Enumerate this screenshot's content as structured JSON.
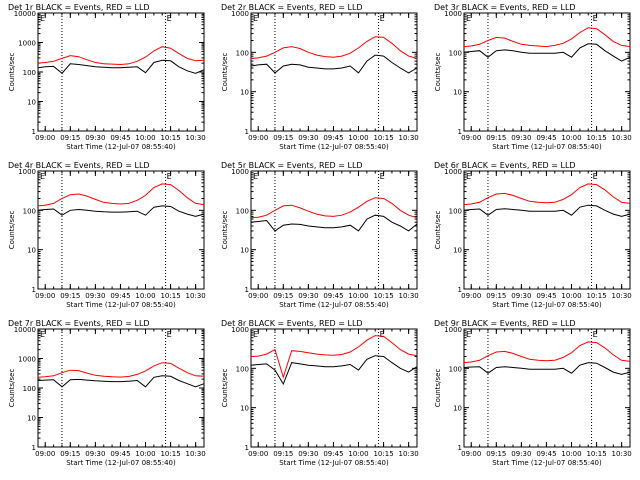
{
  "figure": {
    "xlabel": "Start Time (12-Jul-07 08:55:40)",
    "ylabel": "Counts/sec",
    "marker": "E"
  },
  "colors": {
    "events": "#000000",
    "lld": "#ff0000",
    "axes": "#000000"
  },
  "chart_data": [
    {
      "type": "line",
      "title": "Det 1r BLACK = Events, RED = LLD",
      "yscale": "log",
      "ylim": [
        1,
        10000
      ],
      "yticks": [
        "1",
        "10",
        "100",
        "1000",
        "10000"
      ],
      "xlim": [
        "08:55:40",
        "10:35"
      ],
      "xticks": [
        "09:00",
        "09:15",
        "09:30",
        "09:45",
        "10:00",
        "10:15",
        "10:30"
      ],
      "x": [
        "08:55:40",
        "09:00",
        "09:05",
        "09:10",
        "09:15",
        "09:20",
        "09:25",
        "09:30",
        "09:35",
        "09:40",
        "09:45",
        "09:50",
        "09:55",
        "10:00",
        "10:05",
        "10:10",
        "10:15",
        "10:20",
        "10:25",
        "10:30",
        "10:35"
      ],
      "series": [
        {
          "values": [
            200,
            210,
            230,
            290,
            360,
            330,
            260,
            210,
            190,
            185,
            180,
            190,
            230,
            320,
            520,
            720,
            640,
            420,
            290,
            240,
            250
          ]
        },
        {
          "values": [
            140,
            150,
            155,
            90,
            190,
            180,
            165,
            150,
            145,
            140,
            140,
            145,
            150,
            95,
            210,
            250,
            240,
            150,
            110,
            90,
            120
          ]
        }
      ]
    },
    {
      "type": "line",
      "title": "Det 2r BLACK = Events, RED = LLD",
      "yscale": "log",
      "ylim": [
        1,
        1000
      ],
      "yticks": [
        "1",
        "10",
        "100",
        "1000"
      ],
      "xlim": [
        "08:55:40",
        "10:35"
      ],
      "xticks": [
        "09:00",
        "09:15",
        "09:30",
        "09:45",
        "10:00",
        "10:15",
        "10:30"
      ],
      "x": [
        "08:55:40",
        "09:00",
        "09:05",
        "09:10",
        "09:15",
        "09:20",
        "09:25",
        "09:30",
        "09:35",
        "09:40",
        "09:45",
        "09:50",
        "09:55",
        "10:00",
        "10:05",
        "10:10",
        "10:15",
        "10:20",
        "10:25",
        "10:30",
        "10:35"
      ],
      "series": [
        {
          "values": [
            70,
            72,
            80,
            100,
            130,
            140,
            125,
            100,
            85,
            78,
            75,
            80,
            95,
            130,
            190,
            250,
            240,
            170,
            110,
            80,
            70
          ]
        },
        {
          "values": [
            45,
            48,
            50,
            30,
            45,
            50,
            48,
            42,
            40,
            38,
            38,
            40,
            45,
            30,
            60,
            85,
            80,
            55,
            40,
            30,
            40
          ]
        }
      ]
    },
    {
      "type": "line",
      "title": "Det 3r BLACK = Events, RED = LLD",
      "yscale": "log",
      "ylim": [
        1,
        1000
      ],
      "yticks": [
        "1",
        "10",
        "100",
        "1000"
      ],
      "xlim": [
        "08:55:40",
        "10:35"
      ],
      "xticks": [
        "09:00",
        "09:15",
        "09:30",
        "09:45",
        "10:00",
        "10:15",
        "10:30"
      ],
      "x": [
        "08:55:40",
        "09:00",
        "09:05",
        "09:10",
        "09:15",
        "09:20",
        "09:25",
        "09:30",
        "09:35",
        "09:40",
        "09:45",
        "09:50",
        "09:55",
        "10:00",
        "10:05",
        "10:10",
        "10:15",
        "10:20",
        "10:25",
        "10:30",
        "10:35"
      ],
      "series": [
        {
          "values": [
            140,
            145,
            160,
            200,
            240,
            230,
            190,
            160,
            150,
            145,
            140,
            150,
            170,
            220,
            320,
            420,
            400,
            280,
            190,
            150,
            140
          ]
        },
        {
          "values": [
            100,
            105,
            110,
            75,
            110,
            115,
            110,
            100,
            95,
            95,
            95,
            95,
            100,
            75,
            130,
            165,
            160,
            110,
            80,
            60,
            75
          ]
        }
      ]
    },
    {
      "type": "line",
      "title": "Det 4r BLACK = Events, RED = LLD",
      "yscale": "log",
      "ylim": [
        1,
        1000
      ],
      "yticks": [
        "1",
        "10",
        "100",
        "1000"
      ],
      "xlim": [
        "08:55:40",
        "10:35"
      ],
      "xticks": [
        "09:00",
        "09:15",
        "09:30",
        "09:45",
        "10:00",
        "10:15",
        "10:30"
      ],
      "x": [
        "08:55:40",
        "09:00",
        "09:05",
        "09:10",
        "09:15",
        "09:20",
        "09:25",
        "09:30",
        "09:35",
        "09:40",
        "09:45",
        "09:50",
        "09:55",
        "10:00",
        "10:05",
        "10:10",
        "10:15",
        "10:20",
        "10:25",
        "10:30",
        "10:35"
      ],
      "series": [
        {
          "values": [
            130,
            135,
            150,
            200,
            250,
            260,
            230,
            190,
            160,
            150,
            145,
            150,
            180,
            240,
            380,
            470,
            450,
            320,
            210,
            150,
            140
          ]
        },
        {
          "values": [
            100,
            105,
            108,
            75,
            100,
            105,
            100,
            95,
            92,
            90,
            90,
            92,
            95,
            75,
            120,
            130,
            125,
            95,
            80,
            70,
            80
          ]
        }
      ]
    },
    {
      "type": "line",
      "title": "Det 5r BLACK = Events, RED = LLD",
      "yscale": "log",
      "ylim": [
        1,
        1000
      ],
      "yticks": [
        "1",
        "10",
        "100",
        "1000"
      ],
      "xlim": [
        "08:55:40",
        "10:35"
      ],
      "xticks": [
        "09:00",
        "09:15",
        "09:30",
        "09:45",
        "10:00",
        "10:15",
        "10:30"
      ],
      "x": [
        "08:55:40",
        "09:00",
        "09:05",
        "09:10",
        "09:15",
        "09:20",
        "09:25",
        "09:30",
        "09:35",
        "09:40",
        "09:45",
        "09:50",
        "09:55",
        "10:00",
        "10:05",
        "10:10",
        "10:15",
        "10:20",
        "10:25",
        "10:30",
        "10:35"
      ],
      "series": [
        {
          "values": [
            65,
            67,
            75,
            100,
            130,
            135,
            115,
            95,
            80,
            72,
            70,
            75,
            90,
            120,
            170,
            210,
            200,
            150,
            100,
            75,
            65
          ]
        },
        {
          "values": [
            50,
            52,
            55,
            30,
            42,
            45,
            44,
            40,
            38,
            36,
            36,
            38,
            42,
            30,
            60,
            75,
            70,
            50,
            40,
            30,
            45
          ]
        }
      ]
    },
    {
      "type": "line",
      "title": "Det 6r BLACK = Events, RED = LLD",
      "yscale": "log",
      "ylim": [
        1,
        1000
      ],
      "yticks": [
        "1",
        "10",
        "100",
        "1000"
      ],
      "xlim": [
        "08:55:40",
        "10:35"
      ],
      "xticks": [
        "09:00",
        "09:15",
        "09:30",
        "09:45",
        "10:00",
        "10:15",
        "10:30"
      ],
      "x": [
        "08:55:40",
        "09:00",
        "09:05",
        "09:10",
        "09:15",
        "09:20",
        "09:25",
        "09:30",
        "09:35",
        "09:40",
        "09:45",
        "09:50",
        "09:55",
        "10:00",
        "10:05",
        "10:10",
        "10:15",
        "10:20",
        "10:25",
        "10:30",
        "10:35"
      ],
      "series": [
        {
          "values": [
            140,
            145,
            160,
            210,
            260,
            270,
            240,
            200,
            170,
            160,
            155,
            160,
            190,
            250,
            380,
            470,
            450,
            330,
            220,
            160,
            150
          ]
        },
        {
          "values": [
            100,
            105,
            108,
            75,
            105,
            110,
            105,
            100,
            95,
            95,
            95,
            95,
            100,
            75,
            120,
            135,
            130,
            100,
            80,
            70,
            80
          ]
        }
      ]
    },
    {
      "type": "line",
      "title": "Det 7r BLACK = Events, RED = LLD",
      "yscale": "log",
      "ylim": [
        1,
        10000
      ],
      "yticks": [
        "1",
        "10",
        "100",
        "1000",
        "10000"
      ],
      "xlim": [
        "08:55:40",
        "10:35"
      ],
      "xticks": [
        "09:00",
        "09:15",
        "09:30",
        "09:45",
        "10:00",
        "10:15",
        "10:30"
      ],
      "x": [
        "08:55:40",
        "09:00",
        "09:05",
        "09:10",
        "09:15",
        "09:20",
        "09:25",
        "09:30",
        "09:35",
        "09:40",
        "09:45",
        "09:50",
        "09:55",
        "10:00",
        "10:05",
        "10:10",
        "10:15",
        "10:20",
        "10:25",
        "10:30",
        "10:35"
      ],
      "series": [
        {
          "values": [
            230,
            240,
            260,
            330,
            400,
            390,
            320,
            270,
            250,
            240,
            235,
            245,
            290,
            380,
            560,
            720,
            680,
            470,
            330,
            260,
            250
          ]
        },
        {
          "values": [
            180,
            185,
            190,
            110,
            190,
            195,
            185,
            175,
            170,
            165,
            165,
            170,
            180,
            110,
            230,
            260,
            250,
            180,
            140,
            110,
            140
          ]
        }
      ]
    },
    {
      "type": "line",
      "title": "Det 8r BLACK = Events, RED = LLD",
      "yscale": "log",
      "ylim": [
        1,
        1000
      ],
      "yticks": [
        "1",
        "10",
        "100",
        "1000"
      ],
      "xlim": [
        "08:55:40",
        "10:35"
      ],
      "xticks": [
        "09:00",
        "09:15",
        "09:30",
        "09:45",
        "10:00",
        "10:15",
        "10:30"
      ],
      "x": [
        "08:55:40",
        "09:00",
        "09:05",
        "09:10",
        "09:15",
        "09:20",
        "09:25",
        "09:30",
        "09:35",
        "09:40",
        "09:45",
        "09:50",
        "09:55",
        "10:00",
        "10:05",
        "10:10",
        "10:15",
        "10:20",
        "10:25",
        "10:30",
        "10:35"
      ],
      "series": [
        {
          "values": [
            200,
            205,
            230,
            300,
            60,
            280,
            270,
            250,
            230,
            220,
            215,
            225,
            260,
            350,
            520,
            680,
            650,
            450,
            300,
            230,
            210
          ]
        },
        {
          "values": [
            120,
            125,
            130,
            90,
            40,
            140,
            130,
            120,
            115,
            110,
            110,
            115,
            125,
            90,
            170,
            210,
            200,
            140,
            100,
            80,
            110
          ]
        }
      ]
    },
    {
      "type": "line",
      "title": "Det 9r BLACK = Events, RED = LLD",
      "yscale": "log",
      "ylim": [
        1,
        1000
      ],
      "yticks": [
        "1",
        "10",
        "100",
        "1000"
      ],
      "xlim": [
        "08:55:40",
        "10:35"
      ],
      "xticks": [
        "09:00",
        "09:15",
        "09:30",
        "09:45",
        "10:00",
        "10:15",
        "10:30"
      ],
      "x": [
        "08:55:40",
        "09:00",
        "09:05",
        "09:10",
        "09:15",
        "09:20",
        "09:25",
        "09:30",
        "09:35",
        "09:40",
        "09:45",
        "09:50",
        "09:55",
        "10:00",
        "10:05",
        "10:10",
        "10:15",
        "10:20",
        "10:25",
        "10:30",
        "10:35"
      ],
      "series": [
        {
          "values": [
            140,
            145,
            160,
            210,
            260,
            270,
            240,
            200,
            170,
            160,
            155,
            160,
            190,
            250,
            380,
            470,
            450,
            330,
            220,
            160,
            150
          ]
        },
        {
          "values": [
            105,
            108,
            110,
            75,
            105,
            110,
            105,
            100,
            95,
            95,
            95,
            95,
            100,
            75,
            120,
            140,
            135,
            105,
            80,
            70,
            80
          ]
        }
      ]
    }
  ]
}
